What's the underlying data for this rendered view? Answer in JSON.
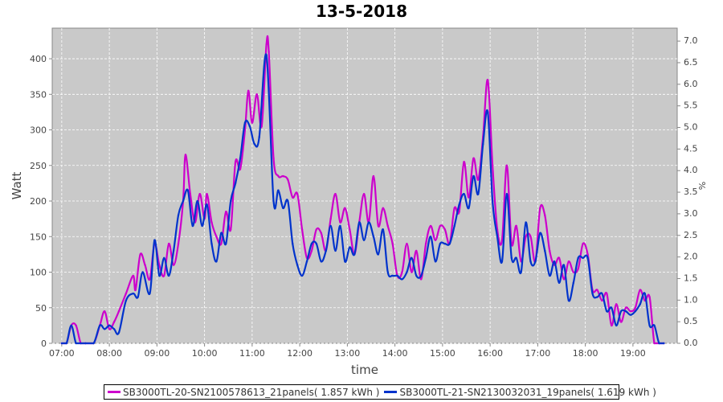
{
  "chart_data": {
    "type": "line",
    "title": "13-5-2018",
    "xlabel": "time",
    "ylabel": "Watt",
    "y2label": "%",
    "xlim": [
      6.8,
      19.93
    ],
    "ylim": [
      0,
      443
    ],
    "y2lim": [
      0,
      7.3
    ],
    "grid": true,
    "legend_position": "bottom",
    "xticks": [
      "07:00",
      "08:00",
      "09:00",
      "10:00",
      "11:00",
      "12:00",
      "13:00",
      "14:00",
      "15:00",
      "16:00",
      "17:00",
      "18:00",
      "19:00"
    ],
    "yticks": [
      "0",
      "50",
      "100",
      "150",
      "200",
      "250",
      "300",
      "350",
      "400"
    ],
    "y2ticks": [
      "0.0",
      "0.5",
      "1.0",
      "1.5",
      "2.0",
      "2.5",
      "3.0",
      "3.5",
      "4.0",
      "4.5",
      "5.0",
      "5.5",
      "6.0",
      "6.5",
      "7.0"
    ],
    "series": [
      {
        "name": "SB3000TL-20-SN2100578613_21panels( 1.857 kWh )",
        "color": "#cc00cc",
        "x": [
          7.0,
          7.1,
          7.2,
          7.3,
          7.4,
          7.5,
          7.67,
          7.8,
          7.9,
          8.0,
          8.1,
          8.2,
          8.35,
          8.5,
          8.55,
          8.65,
          8.75,
          8.85,
          8.95,
          9.05,
          9.15,
          9.25,
          9.35,
          9.45,
          9.55,
          9.6,
          9.7,
          9.8,
          9.9,
          10.0,
          10.05,
          10.15,
          10.25,
          10.35,
          10.45,
          10.55,
          10.65,
          10.75,
          10.85,
          10.92,
          11.0,
          11.1,
          11.2,
          11.3,
          11.35,
          11.45,
          11.55,
          11.65,
          11.75,
          11.85,
          11.95,
          12.05,
          12.15,
          12.25,
          12.35,
          12.45,
          12.55,
          12.65,
          12.75,
          12.85,
          12.95,
          13.05,
          13.15,
          13.25,
          13.35,
          13.45,
          13.55,
          13.65,
          13.75,
          13.85,
          13.95,
          14.05,
          14.15,
          14.25,
          14.35,
          14.45,
          14.55,
          14.65,
          14.75,
          14.85,
          14.95,
          15.05,
          15.15,
          15.25,
          15.35,
          15.45,
          15.55,
          15.65,
          15.75,
          15.85,
          15.95,
          16.05,
          16.15,
          16.25,
          16.35,
          16.45,
          16.55,
          16.65,
          16.75,
          16.85,
          16.95,
          17.05,
          17.15,
          17.25,
          17.35,
          17.45,
          17.55,
          17.65,
          17.75,
          17.85,
          17.95,
          18.05,
          18.15,
          18.25,
          18.35,
          18.45,
          18.55,
          18.65,
          18.75,
          18.85,
          18.95,
          19.05,
          19.15,
          19.25,
          19.35,
          19.45,
          19.55,
          19.65
        ],
        "y": [
          0,
          0,
          25,
          25,
          0,
          0,
          0,
          25,
          45,
          20,
          30,
          45,
          70,
          95,
          75,
          125,
          110,
          90,
          140,
          110,
          95,
          140,
          110,
          140,
          200,
          265,
          210,
          170,
          210,
          175,
          210,
          170,
          150,
          140,
          185,
          160,
          255,
          245,
          300,
          355,
          310,
          350,
          305,
          420,
          410,
          260,
          235,
          235,
          230,
          205,
          210,
          160,
          120,
          130,
          160,
          155,
          130,
          175,
          210,
          170,
          190,
          160,
          125,
          170,
          210,
          170,
          235,
          165,
          190,
          165,
          140,
          95,
          100,
          140,
          100,
          130,
          90,
          140,
          165,
          145,
          165,
          160,
          140,
          190,
          185,
          255,
          205,
          260,
          230,
          290,
          370,
          250,
          160,
          145,
          250,
          140,
          165,
          115,
          150,
          150,
          115,
          190,
          180,
          130,
          110,
          120,
          90,
          115,
          100,
          105,
          140,
          125,
          75,
          75,
          60,
          70,
          25,
          55,
          30,
          50,
          45,
          50,
          75,
          60,
          65,
          0,
          0,
          0
        ]
      },
      {
        "name": "SB3000TL-21-SN2130032031_19panels( 1.619 kWh )",
        "color": "#0033cc",
        "x": [
          7.0,
          7.1,
          7.2,
          7.3,
          7.4,
          7.5,
          7.67,
          7.8,
          7.9,
          8.0,
          8.1,
          8.2,
          8.35,
          8.5,
          8.6,
          8.7,
          8.85,
          8.95,
          9.05,
          9.15,
          9.25,
          9.35,
          9.45,
          9.55,
          9.65,
          9.75,
          9.85,
          9.95,
          10.05,
          10.15,
          10.25,
          10.35,
          10.45,
          10.55,
          10.65,
          10.75,
          10.85,
          10.95,
          11.05,
          11.15,
          11.3,
          11.45,
          11.55,
          11.65,
          11.75,
          11.85,
          11.95,
          12.05,
          12.15,
          12.25,
          12.35,
          12.45,
          12.55,
          12.65,
          12.75,
          12.85,
          12.95,
          13.05,
          13.15,
          13.25,
          13.35,
          13.45,
          13.55,
          13.65,
          13.75,
          13.85,
          13.95,
          14.05,
          14.15,
          14.25,
          14.35,
          14.45,
          14.55,
          14.65,
          14.75,
          14.85,
          14.95,
          15.05,
          15.15,
          15.25,
          15.35,
          15.45,
          15.55,
          15.65,
          15.75,
          15.85,
          15.95,
          16.05,
          16.15,
          16.25,
          16.35,
          16.45,
          16.55,
          16.65,
          16.75,
          16.85,
          16.95,
          17.05,
          17.15,
          17.25,
          17.35,
          17.45,
          17.55,
          17.65,
          17.75,
          17.85,
          17.95,
          18.05,
          18.15,
          18.25,
          18.35,
          18.45,
          18.55,
          18.65,
          18.75,
          18.85,
          18.95,
          19.05,
          19.15,
          19.25,
          19.35,
          19.45,
          19.55,
          19.65
        ],
        "y": [
          0,
          0,
          25,
          0,
          0,
          0,
          0,
          25,
          20,
          25,
          20,
          15,
          60,
          70,
          65,
          100,
          70,
          145,
          95,
          120,
          95,
          130,
          180,
          200,
          215,
          165,
          200,
          165,
          195,
          140,
          115,
          155,
          140,
          200,
          225,
          260,
          310,
          305,
          280,
          290,
          405,
          200,
          215,
          190,
          200,
          140,
          110,
          95,
          115,
          140,
          140,
          115,
          130,
          165,
          130,
          165,
          115,
          135,
          125,
          170,
          145,
          170,
          150,
          125,
          160,
          100,
          95,
          95,
          90,
          100,
          120,
          95,
          95,
          120,
          150,
          115,
          140,
          140,
          140,
          165,
          195,
          210,
          190,
          235,
          210,
          280,
          325,
          200,
          150,
          115,
          210,
          120,
          120,
          100,
          170,
          115,
          115,
          155,
          130,
          95,
          115,
          85,
          110,
          60,
          85,
          120,
          120,
          120,
          70,
          65,
          70,
          45,
          50,
          25,
          45,
          45,
          40,
          45,
          55,
          70,
          25,
          25,
          0,
          0
        ]
      }
    ]
  }
}
